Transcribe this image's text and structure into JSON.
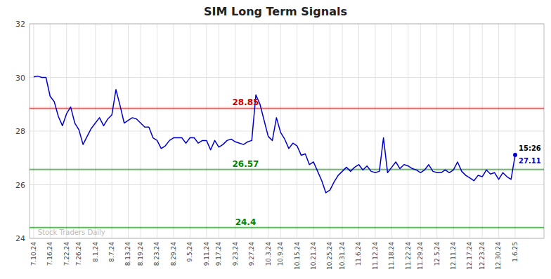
{
  "chart_data": {
    "type": "line",
    "title": "SIM Long Term Signals",
    "color": "#0000cc",
    "grid": true,
    "ylim": [
      24,
      32
    ],
    "yticks": [
      24,
      26,
      28,
      30,
      32
    ],
    "categories": [
      "7.10.24",
      null,
      null,
      null,
      "7.16.24",
      null,
      null,
      null,
      "7.22.24",
      null,
      null,
      "7.26.24",
      null,
      null,
      null,
      "8.1.24",
      null,
      null,
      null,
      "8.7.24",
      null,
      null,
      null,
      "8.13.24",
      null,
      null,
      "8.19.24",
      null,
      null,
      null,
      "8.23.24",
      null,
      null,
      null,
      "8.29.24",
      null,
      null,
      null,
      "9.5.24",
      null,
      null,
      null,
      "9.11.24",
      null,
      null,
      "9.17.24",
      null,
      null,
      null,
      "9.23.24",
      null,
      null,
      null,
      "9.27.24",
      null,
      null,
      null,
      "10.3.24",
      null,
      null,
      "10.9.24",
      null,
      null,
      null,
      "10.15.24",
      null,
      null,
      null,
      "10.21.24",
      null,
      null,
      null,
      "10.25.24",
      null,
      null,
      "10.31.24",
      null,
      null,
      null,
      "11.6.24",
      null,
      null,
      null,
      "11.12.24",
      null,
      null,
      null,
      "11.18.24",
      null,
      null,
      null,
      "11.22.24",
      null,
      null,
      "11.29.24",
      null,
      null,
      null,
      "12.5.24",
      null,
      null,
      null,
      "12.11.24",
      null,
      null,
      null,
      "12.17.24",
      null,
      null,
      "12.23.24",
      null,
      null,
      null,
      "12.30.24",
      null,
      null,
      null,
      "1.6.25"
    ],
    "values": [
      30.02,
      30.05,
      30.0,
      30.0,
      29.3,
      29.1,
      28.55,
      28.2,
      28.65,
      28.9,
      28.3,
      28.05,
      27.5,
      27.8,
      28.1,
      28.3,
      28.5,
      28.2,
      28.45,
      28.6,
      29.55,
      28.95,
      28.3,
      28.4,
      28.5,
      28.45,
      28.3,
      28.15,
      28.15,
      27.75,
      27.65,
      27.35,
      27.45,
      27.65,
      27.75,
      27.75,
      27.75,
      27.55,
      27.75,
      27.75,
      27.55,
      27.65,
      27.65,
      27.3,
      27.65,
      27.4,
      27.5,
      27.65,
      27.7,
      27.6,
      27.55,
      27.5,
      27.6,
      27.65,
      29.35,
      29.0,
      28.4,
      27.8,
      27.65,
      28.5,
      27.95,
      27.7,
      27.35,
      27.55,
      27.45,
      27.1,
      27.15,
      26.75,
      26.85,
      26.5,
      26.15,
      25.7,
      25.8,
      26.1,
      26.35,
      26.5,
      26.65,
      26.5,
      26.65,
      26.75,
      26.55,
      26.7,
      26.5,
      26.45,
      26.5,
      27.75,
      26.45,
      26.65,
      26.85,
      26.6,
      26.75,
      26.7,
      26.6,
      26.55,
      26.45,
      26.55,
      26.75,
      26.5,
      26.45,
      26.45,
      26.55,
      26.45,
      26.55,
      26.85,
      26.5,
      26.35,
      26.25,
      26.15,
      26.35,
      26.3,
      26.55,
      26.4,
      26.45,
      26.2,
      26.45,
      26.3,
      26.2,
      27.11
    ],
    "h_lines": [
      {
        "value": 28.85,
        "label": "28.85",
        "color": "#cc0000"
      },
      {
        "value": 26.57,
        "label": "26.57",
        "color": "#008800"
      },
      {
        "value": 24.4,
        "label": "24.4",
        "color": "#008800"
      }
    ],
    "annotations": [
      {
        "text": "15:26"
      }
    ],
    "watermark": "Stock Traders Daily"
  }
}
